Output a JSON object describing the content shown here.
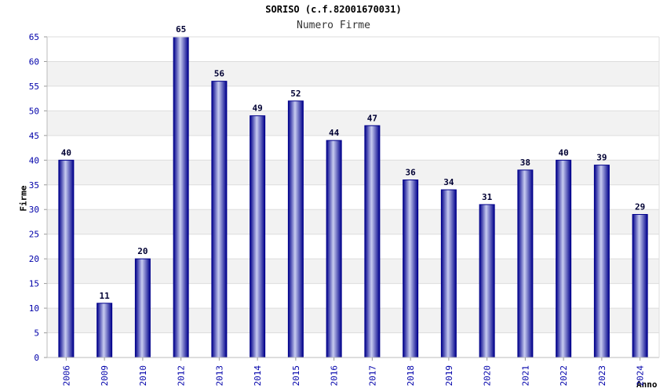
{
  "chart_data": {
    "type": "bar",
    "title": "SORISO (c.f.82001670031)",
    "subtitle": "Numero Firme",
    "xlabel": "Anno",
    "ylabel": "Firme",
    "categories": [
      "2006",
      "2009",
      "2010",
      "2012",
      "2013",
      "2014",
      "2015",
      "2016",
      "2017",
      "2018",
      "2019",
      "2020",
      "2021",
      "2022",
      "2023",
      "2024"
    ],
    "values": [
      40,
      11,
      20,
      65,
      56,
      49,
      52,
      44,
      47,
      36,
      34,
      31,
      38,
      40,
      39,
      29
    ],
    "ylim": [
      0,
      65
    ],
    "yticks": [
      0,
      5,
      10,
      15,
      20,
      25,
      30,
      35,
      40,
      45,
      50,
      55,
      60,
      65
    ],
    "grid": true,
    "data_labels": true,
    "colors": {
      "bar_edge": "#00008b",
      "bar_highlight": "#c8ccf0",
      "bar_mid": "#3a45b8",
      "band": "#f2f2f2",
      "tick_text": "#0000aa"
    }
  }
}
